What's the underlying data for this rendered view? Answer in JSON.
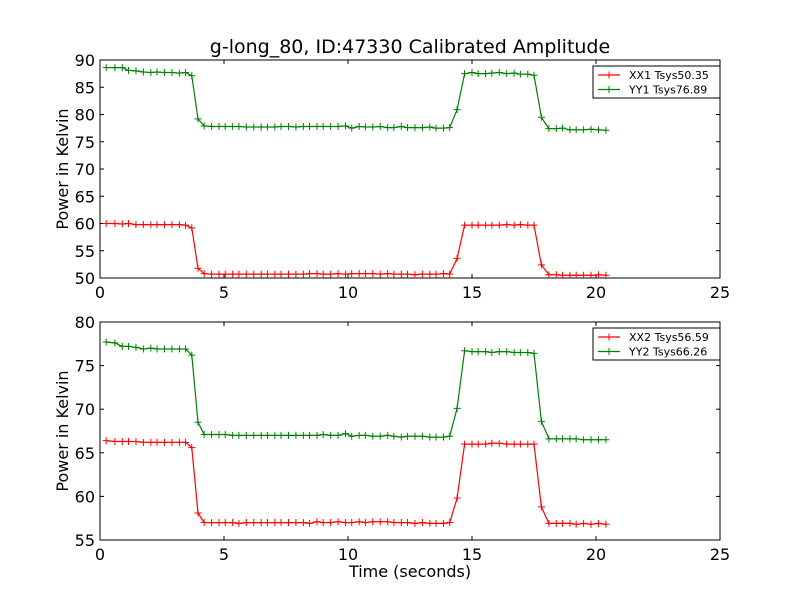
{
  "chart_data": [
    {
      "type": "line",
      "title": "g-long_80, ID:47330 Calibrated Amplitude",
      "xlabel": "",
      "ylabel": "Power in Kelvin",
      "xlim": [
        0,
        25
      ],
      "ylim": [
        50,
        90
      ],
      "xticks": [
        "0",
        "5",
        "10",
        "15",
        "20",
        "25"
      ],
      "yticks": [
        "50",
        "55",
        "60",
        "65",
        "70",
        "75",
        "80",
        "85",
        "90"
      ],
      "grid": false,
      "legend_position": "top-right",
      "x": [
        0.25,
        0.6,
        0.9,
        1.15,
        1.45,
        1.75,
        2.05,
        2.3,
        2.6,
        2.9,
        3.2,
        3.45,
        3.7,
        3.95,
        4.2,
        4.5,
        4.8,
        5.05,
        5.35,
        5.6,
        5.9,
        6.2,
        6.5,
        6.75,
        7.05,
        7.3,
        7.6,
        7.9,
        8.2,
        8.45,
        8.75,
        9.0,
        9.3,
        9.6,
        9.9,
        10.15,
        10.45,
        10.7,
        11.0,
        11.3,
        11.6,
        11.85,
        12.15,
        12.4,
        12.7,
        13.0,
        13.3,
        13.55,
        13.85,
        14.1,
        14.4,
        14.7,
        15.0,
        15.25,
        15.55,
        15.8,
        16.1,
        16.4,
        16.7,
        16.95,
        17.25,
        17.5,
        17.8,
        18.1,
        18.4,
        18.65,
        18.95,
        19.2,
        19.5,
        19.8,
        20.1,
        20.4
      ],
      "series": [
        {
          "name": "XX1 Tsys50.35",
          "color": "#ff0000",
          "values": [
            60.0,
            60.0,
            59.9,
            60.0,
            59.8,
            59.8,
            59.8,
            59.8,
            59.8,
            59.8,
            59.8,
            59.7,
            59.2,
            51.8,
            50.8,
            50.7,
            50.7,
            50.7,
            50.7,
            50.7,
            50.7,
            50.7,
            50.7,
            50.7,
            50.7,
            50.7,
            50.7,
            50.7,
            50.7,
            50.8,
            50.8,
            50.7,
            50.7,
            50.8,
            50.7,
            50.8,
            50.8,
            50.8,
            50.8,
            50.7,
            50.8,
            50.7,
            50.7,
            50.7,
            50.6,
            50.7,
            50.7,
            50.7,
            50.8,
            50.7,
            53.6,
            59.7,
            59.7,
            59.7,
            59.7,
            59.7,
            59.7,
            59.8,
            59.7,
            59.8,
            59.7,
            59.7,
            52.4,
            50.6,
            50.6,
            50.5,
            50.5,
            50.5,
            50.5,
            50.5,
            50.6,
            50.5
          ]
        },
        {
          "name": "YY1 Tsys76.89",
          "color": "#008000",
          "values": [
            88.6,
            88.6,
            88.6,
            88.1,
            88.0,
            87.8,
            87.7,
            87.8,
            87.7,
            87.7,
            87.6,
            87.7,
            87.1,
            79.2,
            77.9,
            77.8,
            77.8,
            77.8,
            77.8,
            77.8,
            77.7,
            77.7,
            77.7,
            77.7,
            77.7,
            77.8,
            77.8,
            77.7,
            77.8,
            77.8,
            77.8,
            77.8,
            77.8,
            77.8,
            77.9,
            77.5,
            77.8,
            77.7,
            77.7,
            77.8,
            77.6,
            77.6,
            77.8,
            77.6,
            77.6,
            77.6,
            77.7,
            77.5,
            77.5,
            77.6,
            80.9,
            87.5,
            87.7,
            87.5,
            87.5,
            87.6,
            87.7,
            87.5,
            87.6,
            87.4,
            87.4,
            87.2,
            79.5,
            77.4,
            77.4,
            77.5,
            77.2,
            77.2,
            77.2,
            77.3,
            77.2,
            77.1
          ]
        }
      ]
    },
    {
      "type": "line",
      "title": "",
      "xlabel": "Time (seconds)",
      "ylabel": "Power in Kelvin",
      "xlim": [
        0,
        25
      ],
      "ylim": [
        55,
        80
      ],
      "xticks": [
        "0",
        "5",
        "10",
        "15",
        "20",
        "25"
      ],
      "yticks": [
        "55",
        "60",
        "65",
        "70",
        "75",
        "80"
      ],
      "grid": false,
      "legend_position": "top-right",
      "x": [
        0.25,
        0.6,
        0.9,
        1.15,
        1.45,
        1.75,
        2.05,
        2.3,
        2.6,
        2.9,
        3.2,
        3.45,
        3.7,
        3.95,
        4.2,
        4.5,
        4.8,
        5.05,
        5.35,
        5.6,
        5.9,
        6.2,
        6.5,
        6.75,
        7.05,
        7.3,
        7.6,
        7.9,
        8.2,
        8.45,
        8.75,
        9.0,
        9.3,
        9.6,
        9.9,
        10.15,
        10.45,
        10.7,
        11.0,
        11.3,
        11.6,
        11.85,
        12.15,
        12.4,
        12.7,
        13.0,
        13.3,
        13.55,
        13.85,
        14.1,
        14.4,
        14.7,
        15.0,
        15.25,
        15.55,
        15.8,
        16.1,
        16.4,
        16.7,
        16.95,
        17.25,
        17.5,
        17.8,
        18.1,
        18.4,
        18.65,
        18.95,
        19.2,
        19.5,
        19.8,
        20.1,
        20.4
      ],
      "series": [
        {
          "name": "XX2 Tsys56.59",
          "color": "#ff0000",
          "values": [
            66.4,
            66.3,
            66.3,
            66.3,
            66.3,
            66.2,
            66.2,
            66.2,
            66.2,
            66.2,
            66.2,
            66.2,
            65.6,
            58.1,
            57.0,
            57.0,
            57.0,
            57.0,
            57.0,
            56.9,
            57.0,
            57.0,
            57.0,
            57.0,
            57.0,
            57.0,
            57.0,
            57.0,
            57.0,
            56.9,
            57.1,
            57.0,
            57.0,
            57.1,
            57.0,
            57.0,
            57.1,
            57.0,
            57.1,
            57.1,
            57.1,
            57.0,
            57.0,
            57.0,
            56.9,
            57.0,
            56.9,
            56.9,
            56.9,
            57.0,
            59.8,
            66.0,
            66.0,
            66.0,
            66.0,
            66.1,
            66.1,
            66.0,
            66.0,
            66.0,
            66.0,
            66.0,
            58.8,
            56.9,
            56.9,
            56.9,
            56.9,
            56.8,
            56.9,
            56.8,
            56.9,
            56.8
          ]
        },
        {
          "name": "YY2 Tsys66.26",
          "color": "#008000",
          "values": [
            77.7,
            77.6,
            77.2,
            77.2,
            77.1,
            76.9,
            77.0,
            76.9,
            76.9,
            76.9,
            76.9,
            76.9,
            76.2,
            68.5,
            67.1,
            67.1,
            67.1,
            67.1,
            67.0,
            67.0,
            67.0,
            67.0,
            67.0,
            67.0,
            67.0,
            67.0,
            67.0,
            67.0,
            67.0,
            67.0,
            67.0,
            67.1,
            67.0,
            67.0,
            67.2,
            66.9,
            67.0,
            67.0,
            66.9,
            66.9,
            67.0,
            66.9,
            66.8,
            66.9,
            66.9,
            66.9,
            66.8,
            66.8,
            66.8,
            66.9,
            70.1,
            76.7,
            76.6,
            76.6,
            76.6,
            76.5,
            76.6,
            76.6,
            76.5,
            76.5,
            76.5,
            76.4,
            68.6,
            66.6,
            66.6,
            66.6,
            66.6,
            66.6,
            66.5,
            66.5,
            66.5,
            66.5
          ]
        }
      ]
    }
  ]
}
